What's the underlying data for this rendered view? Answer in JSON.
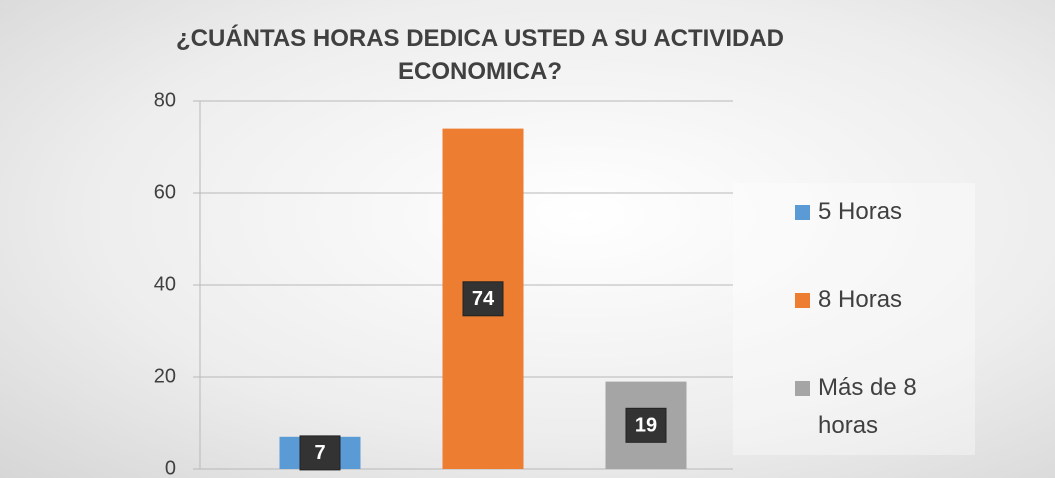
{
  "chart_data": {
    "type": "bar",
    "title": "¿CUÁNTAS HORAS DEDICA USTED A SU ACTIVIDAD ECONOMICA?",
    "categories": [
      null
    ],
    "series": [
      {
        "name": "5 Horas",
        "color": "#5b9bd5",
        "values": [
          7
        ]
      },
      {
        "name": "8 Horas",
        "color": "#ed7d31",
        "values": [
          74
        ]
      },
      {
        "name": "Más de 8 horas",
        "color": "#a5a5a5",
        "values": [
          19
        ]
      }
    ],
    "ylim": [
      0,
      80
    ],
    "yticks": [
      0,
      20,
      40,
      60,
      80
    ],
    "grid": true,
    "legend": "right"
  }
}
